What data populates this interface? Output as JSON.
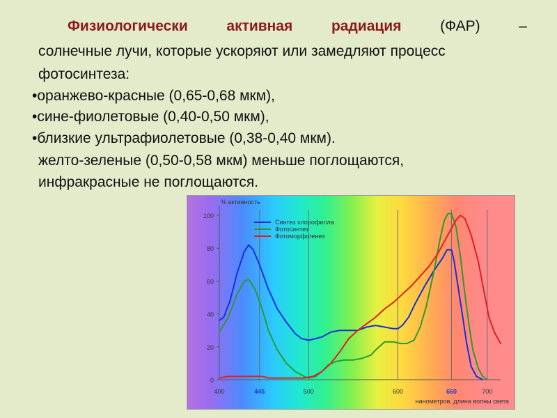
{
  "heading": {
    "title_bold_words": [
      "Физиологически",
      "активная",
      "радиация"
    ],
    "title_rest": [
      "(ФАР)",
      "–"
    ],
    "line2": "солнечные лучи, которые ускоряют или замедляют процесс",
    "line3": "фотосинтеза:"
  },
  "bullets": [
    "•оранжево-красные (0,65-0,68 мкм),",
    "•сине-фиолетовые (0,40-0,50 мкм),",
    "•близкие ультрафиолетовые (0,38-0,40 мкм)."
  ],
  "notes": [
    "желто-зеленые (0,50-0,58 мкм) меньше поглощаются,",
    "инфракрасные не поглощаются."
  ],
  "chart_data": {
    "type": "line",
    "ylabel": "% активность",
    "xlabel": "нанометров, длина волны света",
    "xlim": [
      400,
      715
    ],
    "ylim": [
      0,
      100
    ],
    "x_ticks": [
      400,
      445,
      500,
      600,
      660,
      700
    ],
    "x_ticks_highlight": [
      445,
      660
    ],
    "y_ticks": [
      0,
      20,
      40,
      60,
      80,
      100
    ],
    "grid_x": [
      445,
      500,
      600,
      660,
      700
    ],
    "legend_position": "top",
    "series": [
      {
        "name": "Синтез хлорофилла",
        "color": "#1530d8",
        "points": [
          [
            400,
            36
          ],
          [
            405,
            38
          ],
          [
            412,
            48
          ],
          [
            420,
            65
          ],
          [
            428,
            78
          ],
          [
            433,
            82
          ],
          [
            438,
            79
          ],
          [
            445,
            70
          ],
          [
            455,
            55
          ],
          [
            465,
            43
          ],
          [
            475,
            35
          ],
          [
            485,
            28
          ],
          [
            492,
            25
          ],
          [
            500,
            24
          ],
          [
            508,
            25
          ],
          [
            515,
            26
          ],
          [
            525,
            29
          ],
          [
            535,
            30
          ],
          [
            545,
            30
          ],
          [
            555,
            30
          ],
          [
            565,
            32
          ],
          [
            575,
            33
          ],
          [
            585,
            32
          ],
          [
            595,
            31
          ],
          [
            600,
            31
          ],
          [
            605,
            33
          ],
          [
            612,
            38
          ],
          [
            620,
            47
          ],
          [
            630,
            57
          ],
          [
            640,
            66
          ],
          [
            650,
            74
          ],
          [
            655,
            79
          ],
          [
            660,
            79
          ],
          [
            663,
            72
          ],
          [
            667,
            58
          ],
          [
            672,
            40
          ],
          [
            677,
            22
          ],
          [
            682,
            8
          ],
          [
            688,
            2
          ],
          [
            695,
            0
          ]
        ]
      },
      {
        "name": "Фотосинтез",
        "color": "#2a9a30",
        "points": [
          [
            400,
            29
          ],
          [
            410,
            38
          ],
          [
            420,
            52
          ],
          [
            428,
            60
          ],
          [
            433,
            61
          ],
          [
            440,
            55
          ],
          [
            448,
            43
          ],
          [
            455,
            30
          ],
          [
            465,
            18
          ],
          [
            475,
            10
          ],
          [
            485,
            5
          ],
          [
            495,
            2
          ],
          [
            500,
            1
          ],
          [
            508,
            2
          ],
          [
            515,
            5
          ],
          [
            522,
            9
          ],
          [
            530,
            11
          ],
          [
            540,
            12
          ],
          [
            550,
            12
          ],
          [
            560,
            13
          ],
          [
            570,
            15
          ],
          [
            575,
            18
          ],
          [
            585,
            23
          ],
          [
            595,
            23
          ],
          [
            603,
            22
          ],
          [
            610,
            22
          ],
          [
            618,
            24
          ],
          [
            625,
            32
          ],
          [
            632,
            45
          ],
          [
            640,
            65
          ],
          [
            647,
            85
          ],
          [
            652,
            97
          ],
          [
            656,
            101
          ],
          [
            660,
            101
          ],
          [
            665,
            93
          ],
          [
            670,
            75
          ],
          [
            675,
            52
          ],
          [
            680,
            32
          ],
          [
            684,
            18
          ],
          [
            690,
            7
          ],
          [
            695,
            2
          ],
          [
            700,
            0
          ]
        ]
      },
      {
        "name": "Фотоморфогенез",
        "color": "#e02020",
        "points": [
          [
            400,
            1
          ],
          [
            410,
            2
          ],
          [
            420,
            2
          ],
          [
            430,
            2
          ],
          [
            440,
            2
          ],
          [
            448,
            2
          ],
          [
            455,
            1
          ],
          [
            465,
            1
          ],
          [
            475,
            1
          ],
          [
            485,
            1
          ],
          [
            495,
            1
          ],
          [
            505,
            2
          ],
          [
            515,
            5
          ],
          [
            525,
            10
          ],
          [
            535,
            17
          ],
          [
            545,
            25
          ],
          [
            555,
            30
          ],
          [
            565,
            34
          ],
          [
            575,
            38
          ],
          [
            585,
            43
          ],
          [
            595,
            47
          ],
          [
            605,
            52
          ],
          [
            615,
            57
          ],
          [
            625,
            63
          ],
          [
            635,
            69
          ],
          [
            645,
            77
          ],
          [
            655,
            87
          ],
          [
            665,
            97
          ],
          [
            670,
            100
          ],
          [
            675,
            98
          ],
          [
            682,
            88
          ],
          [
            690,
            72
          ],
          [
            697,
            52
          ],
          [
            702,
            38
          ],
          [
            708,
            29
          ],
          [
            715,
            22
          ]
        ]
      }
    ]
  }
}
